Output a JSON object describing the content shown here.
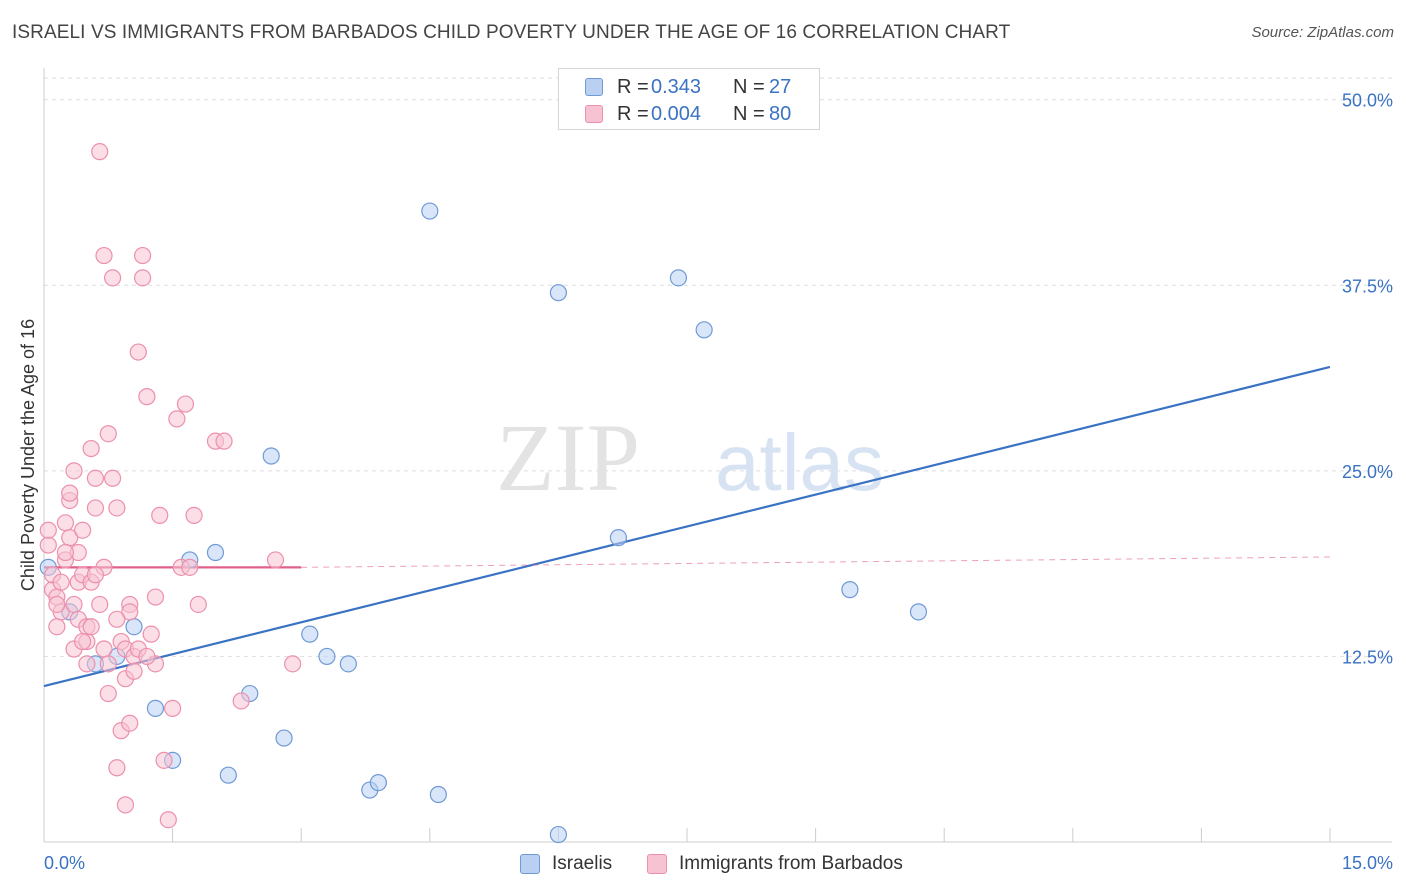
{
  "title": "ISRAELI VS IMMIGRANTS FROM BARBADOS CHILD POVERTY UNDER THE AGE OF 16 CORRELATION CHART",
  "source": "Source: ZipAtlas.com",
  "watermark": {
    "part1": "ZIP",
    "part2": "atlas"
  },
  "colors": {
    "blue": "#3a72c4",
    "blue_fill": "#b9d0f2",
    "blue_stroke": "#6f9ad6",
    "pink": "#e0608a",
    "pink_fill": "#f7c2d2",
    "pink_stroke": "#ec90ad",
    "grid": "#dddddd"
  },
  "legend": {
    "rows": [
      {
        "r_label": "R =",
        "r_value": "0.343",
        "n_label": "N =",
        "n_value": "27"
      },
      {
        "r_label": "R =",
        "r_value": "0.004",
        "n_label": "N =",
        "n_value": "80"
      }
    ]
  },
  "bottom_legend": {
    "series1": "Israelis",
    "series2": "Immigrants from Barbados"
  },
  "chart_data": {
    "type": "scatter",
    "title": "ISRAELI VS IMMIGRANTS FROM BARBADOS CHILD POVERTY UNDER THE AGE OF 16 CORRELATION CHART",
    "xlabel": "",
    "ylabel": "Child Poverty Under the Age of 16",
    "xlim": [
      0,
      15
    ],
    "ylim": [
      0,
      52
    ],
    "x_tick_labels": [
      "0.0%",
      "15.0%"
    ],
    "y_ticks": [
      12.5,
      25.0,
      37.5,
      50.0
    ],
    "y_tick_labels": [
      "12.5%",
      "25.0%",
      "37.5%",
      "50.0%"
    ],
    "grid": true,
    "series": [
      {
        "name": "Israelis",
        "color": "blue",
        "points": [
          [
            0.05,
            18.5
          ],
          [
            0.3,
            15.5
          ],
          [
            0.6,
            12.0
          ],
          [
            0.85,
            12.5
          ],
          [
            1.05,
            14.5
          ],
          [
            1.3,
            9.0
          ],
          [
            1.5,
            5.5
          ],
          [
            1.7,
            19.0
          ],
          [
            2.0,
            19.5
          ],
          [
            2.15,
            4.5
          ],
          [
            2.4,
            10.0
          ],
          [
            2.65,
            26.0
          ],
          [
            2.8,
            7.0
          ],
          [
            3.1,
            14.0
          ],
          [
            3.3,
            12.5
          ],
          [
            3.55,
            12.0
          ],
          [
            3.8,
            3.5
          ],
          [
            3.9,
            4.0
          ],
          [
            4.5,
            42.5
          ],
          [
            4.6,
            3.2
          ],
          [
            6.0,
            0.5
          ],
          [
            6.0,
            37.0
          ],
          [
            6.7,
            20.5
          ],
          [
            7.4,
            38.0
          ],
          [
            7.7,
            34.5
          ],
          [
            9.4,
            17.0
          ],
          [
            10.2,
            15.5
          ]
        ],
        "trend": {
          "x0": 0.0,
          "y0": 10.5,
          "x1": 15.0,
          "y1": 32.0,
          "style": "solid"
        }
      },
      {
        "name": "Immigrants from Barbados",
        "color": "pink",
        "points": [
          [
            0.05,
            20.0
          ],
          [
            0.05,
            21.0
          ],
          [
            0.1,
            17.0
          ],
          [
            0.1,
            18.0
          ],
          [
            0.15,
            16.5
          ],
          [
            0.15,
            14.5
          ],
          [
            0.2,
            17.5
          ],
          [
            0.2,
            15.5
          ],
          [
            0.25,
            19.0
          ],
          [
            0.25,
            21.5
          ],
          [
            0.3,
            23.0
          ],
          [
            0.3,
            20.5
          ],
          [
            0.35,
            16.0
          ],
          [
            0.35,
            13.0
          ],
          [
            0.4,
            17.5
          ],
          [
            0.4,
            15.0
          ],
          [
            0.45,
            18.0
          ],
          [
            0.45,
            21.0
          ],
          [
            0.5,
            12.0
          ],
          [
            0.5,
            13.5
          ],
          [
            0.55,
            26.5
          ],
          [
            0.6,
            24.5
          ],
          [
            0.6,
            22.5
          ],
          [
            0.65,
            16.0
          ],
          [
            0.7,
            18.5
          ],
          [
            0.7,
            13.0
          ],
          [
            0.75,
            27.5
          ],
          [
            0.75,
            10.0
          ],
          [
            0.8,
            24.5
          ],
          [
            0.85,
            22.5
          ],
          [
            0.9,
            13.5
          ],
          [
            0.95,
            13.0
          ],
          [
            0.95,
            11.0
          ],
          [
            1.0,
            16.0
          ],
          [
            1.05,
            12.5
          ],
          [
            1.1,
            13.0
          ],
          [
            1.1,
            33.0
          ],
          [
            1.15,
            38.0
          ],
          [
            1.2,
            30.0
          ],
          [
            1.25,
            14.0
          ],
          [
            1.3,
            16.5
          ],
          [
            1.35,
            22.0
          ],
          [
            1.4,
            5.5
          ],
          [
            1.45,
            1.5
          ],
          [
            1.5,
            9.0
          ],
          [
            1.55,
            28.5
          ],
          [
            1.6,
            18.5
          ],
          [
            1.65,
            29.5
          ],
          [
            1.7,
            18.5
          ],
          [
            1.75,
            22.0
          ],
          [
            1.8,
            16.0
          ],
          [
            0.65,
            46.5
          ],
          [
            0.7,
            39.5
          ],
          [
            0.8,
            38.0
          ],
          [
            1.15,
            39.5
          ],
          [
            0.85,
            5.0
          ],
          [
            0.95,
            2.5
          ],
          [
            0.9,
            7.5
          ],
          [
            1.0,
            8.0
          ],
          [
            0.55,
            17.5
          ],
          [
            0.5,
            14.5
          ],
          [
            0.4,
            19.5
          ],
          [
            0.35,
            25.0
          ],
          [
            0.3,
            23.5
          ],
          [
            2.0,
            27.0
          ],
          [
            2.1,
            27.0
          ],
          [
            2.3,
            9.5
          ],
          [
            2.7,
            19.0
          ],
          [
            2.9,
            12.0
          ],
          [
            1.3,
            12.0
          ],
          [
            1.2,
            12.5
          ],
          [
            1.0,
            15.5
          ],
          [
            0.6,
            18.0
          ],
          [
            0.45,
            13.5
          ],
          [
            0.25,
            19.5
          ],
          [
            0.15,
            16.0
          ],
          [
            0.55,
            14.5
          ],
          [
            0.75,
            12.0
          ],
          [
            1.05,
            11.5
          ],
          [
            0.85,
            15.0
          ]
        ],
        "trend": {
          "x0": 0.0,
          "y0": 18.5,
          "x1": 3.0,
          "y1": 18.5,
          "style": "solid",
          "extended": {
            "x0": 3.0,
            "y0": 18.5,
            "x1": 15.0,
            "y1": 19.2,
            "style": "dashed"
          }
        }
      }
    ]
  }
}
